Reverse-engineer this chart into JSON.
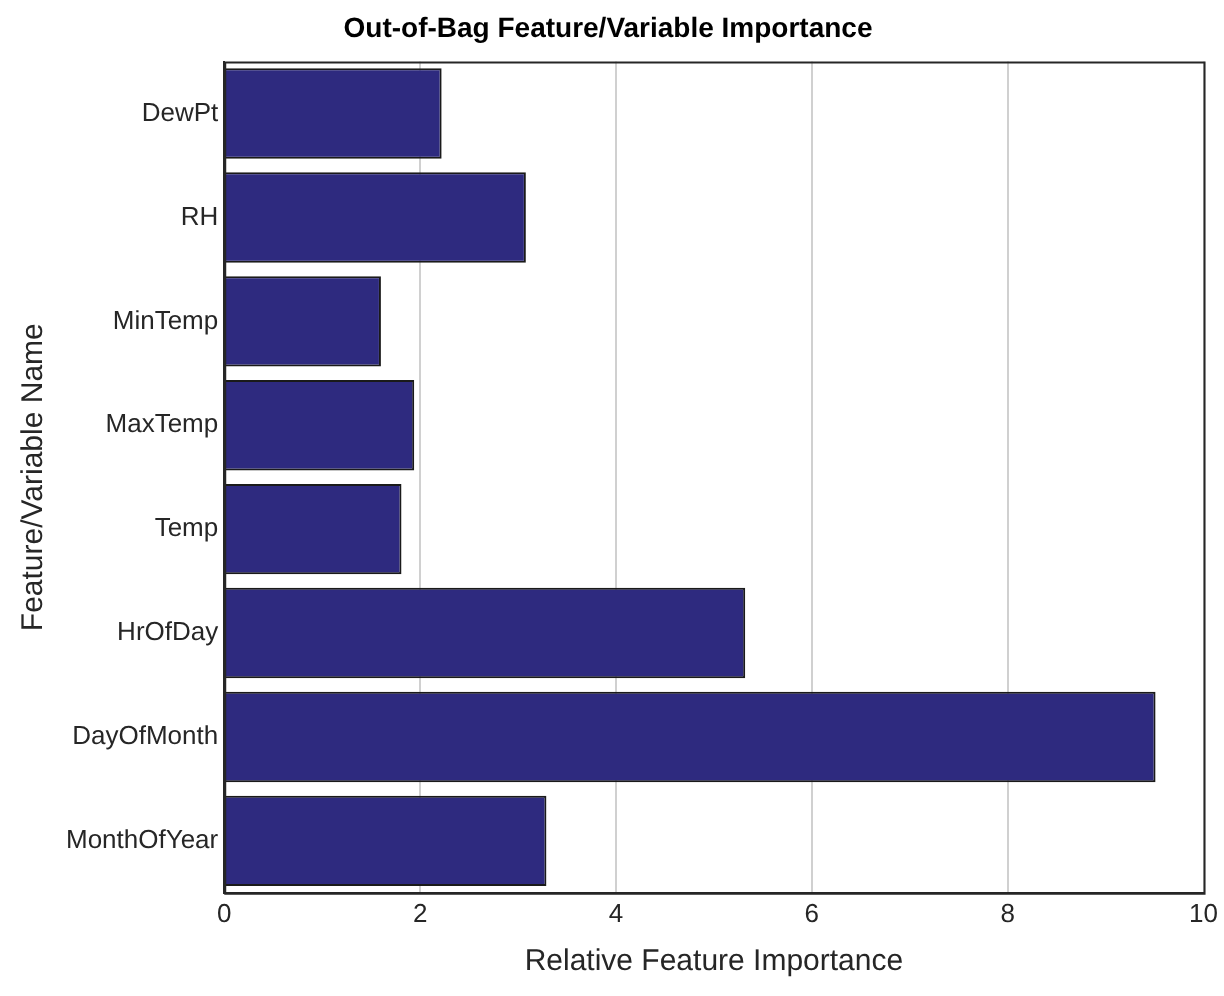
{
  "chart_data": {
    "type": "bar",
    "orientation": "horizontal",
    "title": "Out-of-Bag Feature/Variable Importance",
    "xlabel": "Relative Feature Importance",
    "ylabel": "Feature/Variable Name",
    "categories": [
      "DewPt",
      "RH",
      "MinTemp",
      "MaxTemp",
      "Temp",
      "HrOfDay",
      "DayOfMonth",
      "MonthOfYear"
    ],
    "values": [
      2.22,
      3.08,
      1.6,
      1.94,
      1.81,
      5.32,
      9.51,
      3.29
    ],
    "color": "#2e2a7f",
    "xlim": [
      0,
      10
    ],
    "xticks": [
      0,
      2,
      4,
      6,
      8,
      10
    ],
    "grid": "x",
    "legend": false
  }
}
